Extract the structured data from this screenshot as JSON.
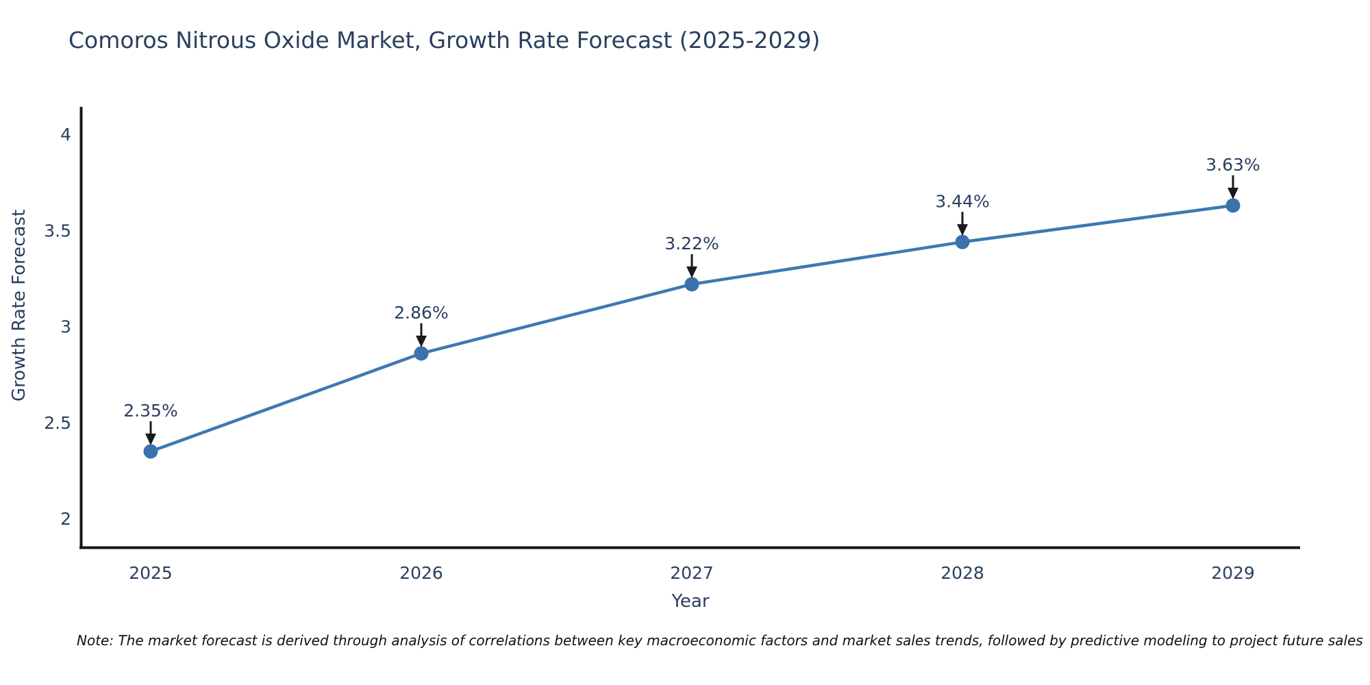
{
  "header": {
    "title": "Comoros Nitrous Oxide Market, Growth Rate Forecast (2025-2029)"
  },
  "footnote": {
    "text": "Note: The market forecast is derived through analysis of correlations between key macroeconomic factors and market sales trends, followed by predictive modeling to project future sales"
  },
  "colors": {
    "line": "#3f78b2",
    "marker": "#3a72ac",
    "axis": "#161616",
    "label_text": "#2a3f5f",
    "annotation_arrow": "#1a1a1a",
    "note_text": "#111111",
    "background": "#ffffff"
  },
  "chart_data": {
    "type": "line",
    "title": "Comoros Nitrous Oxide Market, Growth Rate Forecast (2025-2029)",
    "xlabel": "Year",
    "ylabel": "Growth Rate Forecast",
    "x": [
      2025,
      2026,
      2027,
      2028,
      2029
    ],
    "series": [
      {
        "name": "Growth Rate Forecast",
        "values": [
          2.35,
          2.86,
          3.22,
          3.44,
          3.63
        ]
      }
    ],
    "point_labels": [
      "2.35%",
      "2.86%",
      "3.22%",
      "3.44%",
      "3.63%"
    ],
    "yticks": [
      2,
      2.5,
      3,
      3.5,
      4
    ],
    "ylim": [
      1.85,
      4.15
    ],
    "xlim": [
      2024.74,
      2029.25
    ],
    "grid": false,
    "legend": false,
    "marker_style": "filled-circle",
    "annotation_style": "value label with downward arrow above each point"
  }
}
